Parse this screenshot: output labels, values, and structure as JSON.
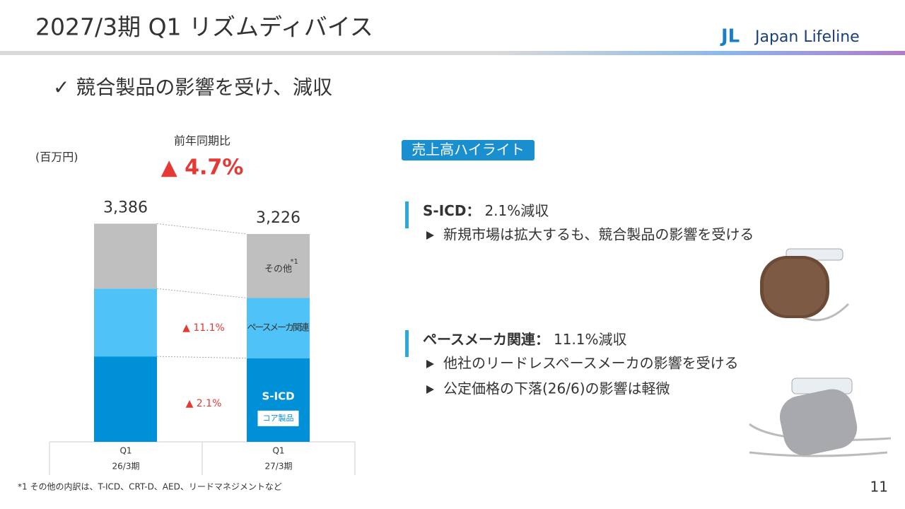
{
  "header": {
    "title": "2027/3期 Q1 リズムディバイス",
    "logo": {
      "mark": "JL",
      "text": "Japan Lifeline"
    }
  },
  "headline": "✓ 競合製品の影響を受け、減収",
  "chart_data": {
    "type": "stacked-bar",
    "unit": "(百万円)",
    "change_caption": "前年同期比",
    "total_change": "▲ 4.7%",
    "categories": [
      "Q1",
      "Q1"
    ],
    "periods": [
      "26/3期",
      "27/3期"
    ],
    "series": [
      {
        "name": "S-ICD",
        "color": "#0090d8",
        "values": [
          1326,
          1298
        ],
        "change_label": "▲ 2.1%",
        "tag": "コア製品"
      },
      {
        "name": "ペースメーカ関連",
        "color": "#4fc3f7",
        "values": [
          1052,
          935
        ],
        "change_label": "▲ 11.1%"
      },
      {
        "name": "その他",
        "color": "#bfbfbf",
        "values": [
          1008,
          993
        ],
        "note_mark": "*1"
      }
    ],
    "totals": [
      3386,
      3226
    ],
    "total_labels": [
      "3,386",
      "3,226"
    ],
    "ylim": [
      0,
      3500
    ]
  },
  "highlights": {
    "badge": "売上高ハイライト",
    "items": [
      {
        "heading": "S-ICD：",
        "value": "2.1%減収",
        "bullets": [
          "新規市場は拡大するも、競合製品の影響を受ける"
        ]
      },
      {
        "heading": "ペースメーカ関連：",
        "value": "11.1%減収",
        "bullets": [
          "他社のリードレスペースメーカの影響を受ける",
          "公定価格の下落(26/6)の影響は軽微"
        ]
      }
    ]
  },
  "footnote": "*1 その他の内訳は、T-ICD、CRT-D、AED、リードマネジメントなど",
  "page_number": "11"
}
